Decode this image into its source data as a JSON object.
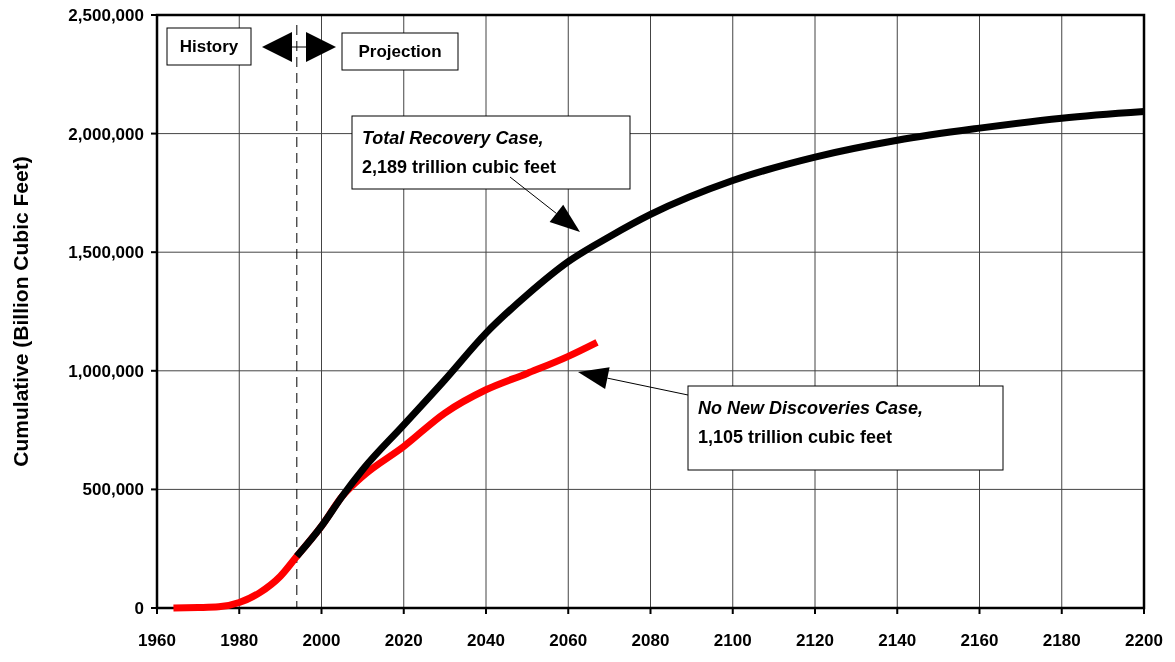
{
  "chart_data": {
    "type": "line",
    "ylabel": "Cumulative (Billion Cubic Feet)",
    "xlim": [
      1960,
      2200
    ],
    "xticks": [
      1960,
      1980,
      2000,
      2020,
      2040,
      2060,
      2080,
      2100,
      2120,
      2140,
      2160,
      2180,
      2200
    ],
    "ylim": [
      0,
      2500000
    ],
    "yticks": [
      {
        "value": 0,
        "label": "0"
      },
      {
        "value": 500000,
        "label": "500,000"
      },
      {
        "value": 1000000,
        "label": "1,000,000"
      },
      {
        "value": 1500000,
        "label": "1,500,000"
      },
      {
        "value": 2000000,
        "label": "2,000,000"
      },
      {
        "value": 2500000,
        "label": "2,500,000"
      }
    ],
    "grid": true,
    "line_style": "solid",
    "series": [
      {
        "color": "#ff0000",
        "x": [
          1964,
          1970,
          1975,
          1980,
          1985,
          1990,
          1994,
          2000,
          2005,
          2010,
          2020,
          2030,
          2040,
          2050,
          2060,
          2067
        ],
        "values": [
          0,
          2000,
          5000,
          23000,
          65000,
          134000,
          218000,
          345000,
          470000,
          555000,
          681000,
          822000,
          920000,
          989000,
          1061000,
          1120000
        ]
      },
      {
        "color": "#000000",
        "x": [
          1994,
          2000,
          2005,
          2010,
          2020,
          2030,
          2040,
          2050,
          2060,
          2070,
          2080,
          2100,
          2120,
          2140,
          2160,
          2180,
          2200
        ],
        "values": [
          218000,
          345000,
          470000,
          583000,
          772000,
          962000,
          1159000,
          1320000,
          1460000,
          1565000,
          1659000,
          1802000,
          1901000,
          1972000,
          2023000,
          2065000,
          2093000
        ]
      }
    ],
    "ref_lines": [
      {
        "axis": "x",
        "value": 1994,
        "color": "#000000",
        "line_style": "dashed"
      }
    ],
    "annotations": [
      "History",
      "Projection",
      "Total Recovery Case,\n2,189 trillion cubic feet",
      "No New Discoveries Case,\n1,105 trillion cubic feet"
    ]
  }
}
